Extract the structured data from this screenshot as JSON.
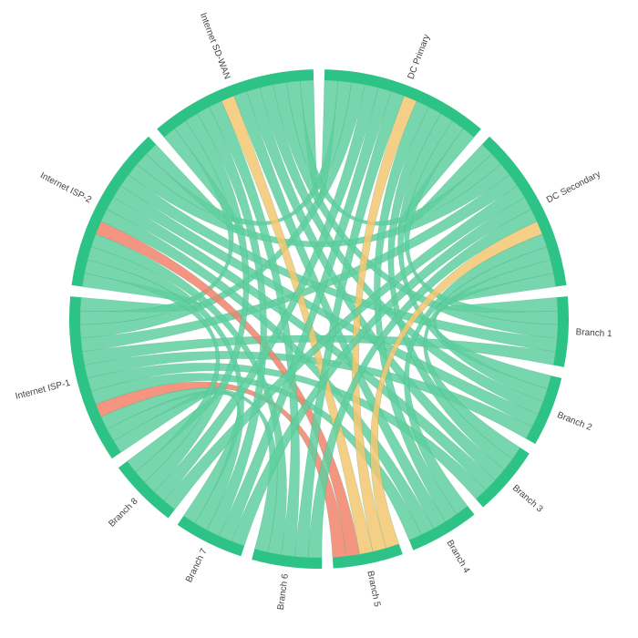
{
  "nodes": [
    {
      "label": "DC Primary"
    },
    {
      "label": "DC Secondary"
    },
    {
      "label": "Branch 1"
    },
    {
      "label": "Branch 2"
    },
    {
      "label": "Branch 3"
    },
    {
      "label": "Branch 4"
    },
    {
      "label": "Branch 5"
    },
    {
      "label": "Branch 6"
    },
    {
      "label": "Branch 7"
    },
    {
      "label": "Branch 8"
    },
    {
      "label": "Internet ISP-1"
    },
    {
      "label": "Internet ISP-2"
    },
    {
      "label": "Internet SD-WAN"
    }
  ],
  "node_color": "#2ec386",
  "links": [
    [
      0,
      1,
      "#5fcf9f"
    ],
    [
      0,
      10,
      "#5fcf9f"
    ],
    [
      0,
      11,
      "#5fcf9f"
    ],
    [
      0,
      12,
      "#5fcf9f"
    ],
    [
      1,
      10,
      "#5fcf9f"
    ],
    [
      1,
      11,
      "#5fcf9f"
    ],
    [
      1,
      12,
      "#5fcf9f"
    ],
    [
      10,
      11,
      "#5fcf9f"
    ],
    [
      10,
      12,
      "#5fcf9f"
    ],
    [
      11,
      12,
      "#5fcf9f"
    ],
    [
      2,
      0,
      "#5fcf9f"
    ],
    [
      2,
      1,
      "#5fcf9f"
    ],
    [
      2,
      10,
      "#5fcf9f"
    ],
    [
      2,
      11,
      "#5fcf9f"
    ],
    [
      2,
      12,
      "#5fcf9f"
    ],
    [
      3,
      0,
      "#5fcf9f"
    ],
    [
      3,
      1,
      "#5fcf9f"
    ],
    [
      3,
      10,
      "#5fcf9f"
    ],
    [
      3,
      11,
      "#5fcf9f"
    ],
    [
      3,
      12,
      "#5fcf9f"
    ],
    [
      4,
      0,
      "#5fcf9f"
    ],
    [
      4,
      1,
      "#5fcf9f"
    ],
    [
      4,
      10,
      "#5fcf9f"
    ],
    [
      4,
      11,
      "#5fcf9f"
    ],
    [
      4,
      12,
      "#5fcf9f"
    ],
    [
      5,
      0,
      "#5fcf9f"
    ],
    [
      5,
      1,
      "#5fcf9f"
    ],
    [
      5,
      10,
      "#5fcf9f"
    ],
    [
      5,
      11,
      "#5fcf9f"
    ],
    [
      5,
      12,
      "#5fcf9f"
    ],
    [
      6,
      0,
      "#f5c771"
    ],
    [
      6,
      1,
      "#f5c771"
    ],
    [
      6,
      10,
      "#f2836b"
    ],
    [
      6,
      11,
      "#f2836b"
    ],
    [
      6,
      12,
      "#f5c771"
    ],
    [
      7,
      0,
      "#5fcf9f"
    ],
    [
      7,
      1,
      "#5fcf9f"
    ],
    [
      7,
      10,
      "#5fcf9f"
    ],
    [
      7,
      11,
      "#5fcf9f"
    ],
    [
      7,
      12,
      "#5fcf9f"
    ],
    [
      8,
      0,
      "#5fcf9f"
    ],
    [
      8,
      1,
      "#5fcf9f"
    ],
    [
      8,
      10,
      "#5fcf9f"
    ],
    [
      8,
      11,
      "#5fcf9f"
    ],
    [
      8,
      12,
      "#5fcf9f"
    ],
    [
      9,
      0,
      "#5fcf9f"
    ],
    [
      9,
      1,
      "#5fcf9f"
    ],
    [
      9,
      10,
      "#5fcf9f"
    ],
    [
      9,
      11,
      "#5fcf9f"
    ],
    [
      9,
      12,
      "#5fcf9f"
    ]
  ]
}
